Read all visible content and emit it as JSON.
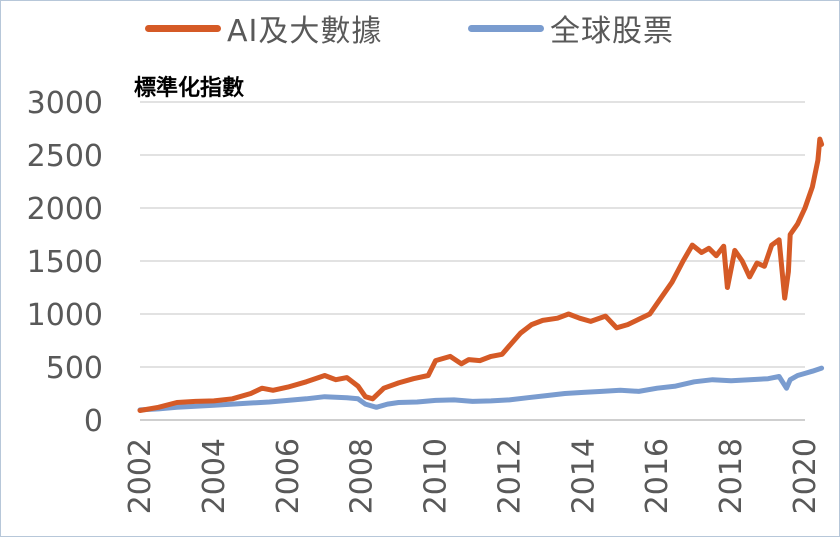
{
  "chart_data": {
    "type": "line",
    "title": "",
    "xlabel": "",
    "ylabel": "標準化指數",
    "xlim": [
      2002,
      2020
    ],
    "ylim": [
      0,
      3000
    ],
    "x_ticks": [
      "2002",
      "2004",
      "2006",
      "2008",
      "2010",
      "2012",
      "2014",
      "2016",
      "2018",
      "2020"
    ],
    "y_ticks": [
      "0",
      "500",
      "1000",
      "1500",
      "2000",
      "2500",
      "3000"
    ],
    "grid": true,
    "legend_position": "top",
    "series": [
      {
        "name": "AI及大數據",
        "color": "#d55a26",
        "x": [
          2002.0,
          2002.5,
          2003.0,
          2003.5,
          2004.0,
          2004.5,
          2005.0,
          2005.3,
          2005.6,
          2006.0,
          2006.5,
          2007.0,
          2007.3,
          2007.6,
          2007.9,
          2008.1,
          2008.3,
          2008.6,
          2009.0,
          2009.4,
          2009.8,
          2010.0,
          2010.4,
          2010.7,
          2010.9,
          2011.2,
          2011.5,
          2011.8,
          2012.0,
          2012.3,
          2012.6,
          2012.9,
          2013.3,
          2013.6,
          2013.9,
          2014.2,
          2014.6,
          2014.9,
          2015.2,
          2015.5,
          2015.8,
          2016.1,
          2016.4,
          2016.7,
          2016.95,
          2017.2,
          2017.4,
          2017.6,
          2017.8,
          2017.9,
          2018.1,
          2018.3,
          2018.5,
          2018.7,
          2018.9,
          2019.1,
          2019.3,
          2019.45,
          2019.55,
          2019.6,
          2019.8,
          2020.0,
          2020.2,
          2020.35,
          2020.4,
          2020.45
        ],
        "values": [
          90,
          120,
          165,
          175,
          180,
          200,
          250,
          300,
          280,
          310,
          360,
          420,
          380,
          400,
          320,
          220,
          200,
          300,
          350,
          390,
          420,
          560,
          600,
          530,
          570,
          560,
          600,
          620,
          700,
          820,
          900,
          940,
          960,
          1000,
          960,
          930,
          980,
          870,
          900,
          950,
          1000,
          1150,
          1300,
          1500,
          1650,
          1580,
          1620,
          1550,
          1640,
          1250,
          1600,
          1500,
          1350,
          1480,
          1450,
          1650,
          1700,
          1150,
          1400,
          1750,
          1850,
          2000,
          2200,
          2450,
          2650,
          2600
        ]
      },
      {
        "name": "全球股票",
        "color": "#7a9ccf",
        "x": [
          2002.0,
          2002.5,
          2003.0,
          2003.5,
          2004.0,
          2004.5,
          2005.0,
          2005.5,
          2006.0,
          2006.5,
          2007.0,
          2007.3,
          2007.6,
          2007.9,
          2008.1,
          2008.4,
          2008.7,
          2009.0,
          2009.5,
          2010.0,
          2010.5,
          2011.0,
          2011.5,
          2012.0,
          2012.5,
          2013.0,
          2013.5,
          2014.0,
          2014.5,
          2015.0,
          2015.5,
          2016.0,
          2016.5,
          2017.0,
          2017.5,
          2018.0,
          2018.5,
          2019.0,
          2019.3,
          2019.5,
          2019.6,
          2019.8,
          2020.0,
          2020.2,
          2020.45
        ],
        "values": [
          95,
          105,
          120,
          130,
          140,
          150,
          160,
          170,
          185,
          200,
          220,
          215,
          210,
          200,
          150,
          120,
          150,
          165,
          170,
          185,
          190,
          175,
          180,
          190,
          210,
          230,
          250,
          260,
          270,
          280,
          270,
          300,
          320,
          360,
          380,
          370,
          380,
          390,
          410,
          300,
          380,
          420,
          440,
          460,
          490
        ]
      }
    ]
  }
}
